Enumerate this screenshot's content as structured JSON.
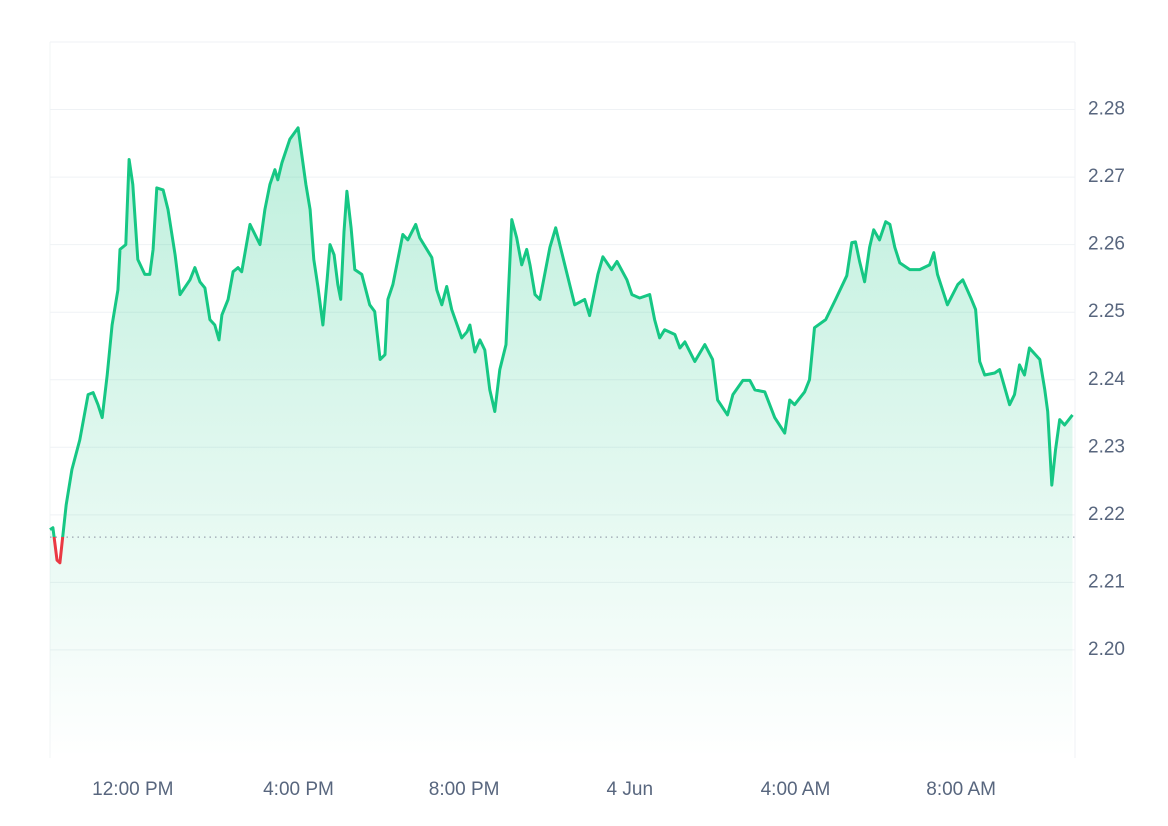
{
  "chart_data": {
    "type": "line",
    "x": [
      10.0,
      10.07,
      10.17,
      10.24,
      10.39,
      10.53,
      10.72,
      10.92,
      11.04,
      11.16,
      11.26,
      11.38,
      11.5,
      11.64,
      11.69,
      11.83,
      11.91,
      12.0,
      12.12,
      12.29,
      12.41,
      12.49,
      12.58,
      12.73,
      12.85,
      13.02,
      13.14,
      13.38,
      13.5,
      13.62,
      13.74,
      13.86,
      13.98,
      14.08,
      14.15,
      14.3,
      14.42,
      14.54,
      14.63,
      14.83,
      15.07,
      15.19,
      15.31,
      15.43,
      15.5,
      15.6,
      15.79,
      15.99,
      16.08,
      16.18,
      16.28,
      16.37,
      16.47,
      16.59,
      16.69,
      16.76,
      16.86,
      16.95,
      17.02,
      17.1,
      17.17,
      17.27,
      17.36,
      17.53,
      17.72,
      17.84,
      17.97,
      18.09,
      18.16,
      18.28,
      18.52,
      18.64,
      18.83,
      18.93,
      19.22,
      19.34,
      19.46,
      19.58,
      19.7,
      19.94,
      20.07,
      20.14,
      20.26,
      20.38,
      20.5,
      20.62,
      20.74,
      20.86,
      21.01,
      21.15,
      21.27,
      21.39,
      21.51,
      21.59,
      21.71,
      21.83,
      22.07,
      22.21,
      22.43,
      22.67,
      22.91,
      23.03,
      23.23,
      23.35,
      23.56,
      23.69,
      23.93,
      24.05,
      24.24,
      24.48,
      24.6,
      24.72,
      24.84,
      25.09,
      25.21,
      25.33,
      25.57,
      25.81,
      26.0,
      26.12,
      26.36,
      26.49,
      26.73,
      26.9,
      27.02,
      27.26,
      27.5,
      27.74,
      27.86,
      27.98,
      28.22,
      28.34,
      28.46,
      28.73,
      28.97,
      29.24,
      29.36,
      29.45,
      29.55,
      29.67,
      29.79,
      29.89,
      30.03,
      30.18,
      30.28,
      30.4,
      30.52,
      30.76,
      31.0,
      31.24,
      31.34,
      31.43,
      31.67,
      31.92,
      32.04,
      32.25,
      32.35,
      32.45,
      32.57,
      32.81,
      32.93,
      33.17,
      33.29,
      33.41,
      33.53,
      33.65,
      33.9,
      34.02,
      34.09,
      34.19,
      34.28,
      34.38,
      34.5,
      34.69
    ],
    "values": [
      2.2178,
      2.2181,
      2.2133,
      2.2129,
      2.2215,
      2.2267,
      2.2311,
      2.2378,
      2.2381,
      2.2363,
      2.2344,
      2.2407,
      2.2481,
      2.2533,
      2.2593,
      2.26,
      2.2726,
      2.2689,
      2.2578,
      2.2556,
      2.2556,
      2.2593,
      2.2684,
      2.2681,
      2.2652,
      2.2585,
      2.2526,
      2.2548,
      2.2566,
      2.2545,
      2.2536,
      2.2489,
      2.2481,
      2.2459,
      2.2496,
      2.2519,
      2.256,
      2.2566,
      2.256,
      2.263,
      2.26,
      2.2652,
      2.2689,
      2.2711,
      2.2696,
      2.2721,
      2.2756,
      2.2773,
      2.2733,
      2.2689,
      2.2652,
      2.2578,
      2.2538,
      2.2481,
      2.2548,
      2.26,
      2.2585,
      2.2541,
      2.2519,
      2.2619,
      2.2679,
      2.2625,
      2.2563,
      2.2556,
      2.2511,
      2.2501,
      2.243,
      2.2437,
      2.2519,
      2.2541,
      2.2615,
      2.2607,
      2.263,
      2.261,
      2.2581,
      2.2533,
      2.2511,
      2.2538,
      2.2504,
      2.2462,
      2.2471,
      2.2481,
      2.2441,
      2.2459,
      2.2444,
      2.2385,
      2.2353,
      2.2415,
      2.2452,
      2.2637,
      2.261,
      2.257,
      2.2593,
      2.257,
      2.2526,
      2.2519,
      2.2596,
      2.2625,
      2.257,
      2.2511,
      2.2519,
      2.2495,
      2.2556,
      2.2582,
      2.2563,
      2.2575,
      2.2548,
      2.2526,
      2.2521,
      2.2526,
      2.2489,
      2.2462,
      2.2474,
      2.2467,
      2.2447,
      2.2456,
      2.2427,
      2.2452,
      2.243,
      2.237,
      2.2348,
      2.2378,
      2.2399,
      2.2399,
      2.2385,
      2.2382,
      2.2344,
      2.2321,
      2.237,
      2.2363,
      2.2382,
      2.24,
      2.2477,
      2.2489,
      2.2519,
      2.2554,
      2.2603,
      2.2604,
      2.2575,
      2.2545,
      2.2596,
      2.2622,
      2.2607,
      2.2634,
      2.263,
      2.2596,
      2.2573,
      2.2563,
      2.2563,
      2.257,
      2.2588,
      2.2556,
      2.2511,
      2.2541,
      2.2548,
      2.2519,
      2.2504,
      2.2427,
      2.2407,
      2.241,
      2.2415,
      2.2363,
      2.2378,
      2.2422,
      2.2407,
      2.2447,
      2.243,
      2.2385,
      2.2353,
      2.2244,
      2.2296,
      2.2341,
      2.2333,
      2.2348
    ],
    "color": "#16c784",
    "down_color": "#ea3943",
    "baseline": 2.2167,
    "xlim": [
      10,
      34.75
    ],
    "xticks": [
      {
        "value": 12,
        "label": "12:00 PM"
      },
      {
        "value": 16,
        "label": "4:00 PM"
      },
      {
        "value": 20,
        "label": "8:00 PM"
      },
      {
        "value": 24,
        "label": "4 Jun"
      },
      {
        "value": 28,
        "label": "4:00 AM"
      },
      {
        "value": 32,
        "label": "8:00 AM"
      }
    ],
    "ylim": [
      2.184,
      2.29
    ],
    "yticks": [
      {
        "value": 2.2,
        "label": "2.20"
      },
      2.21,
      2.22,
      2.23,
      2.24,
      2.25,
      2.26,
      2.27,
      2.28
    ],
    "grid": true
  }
}
